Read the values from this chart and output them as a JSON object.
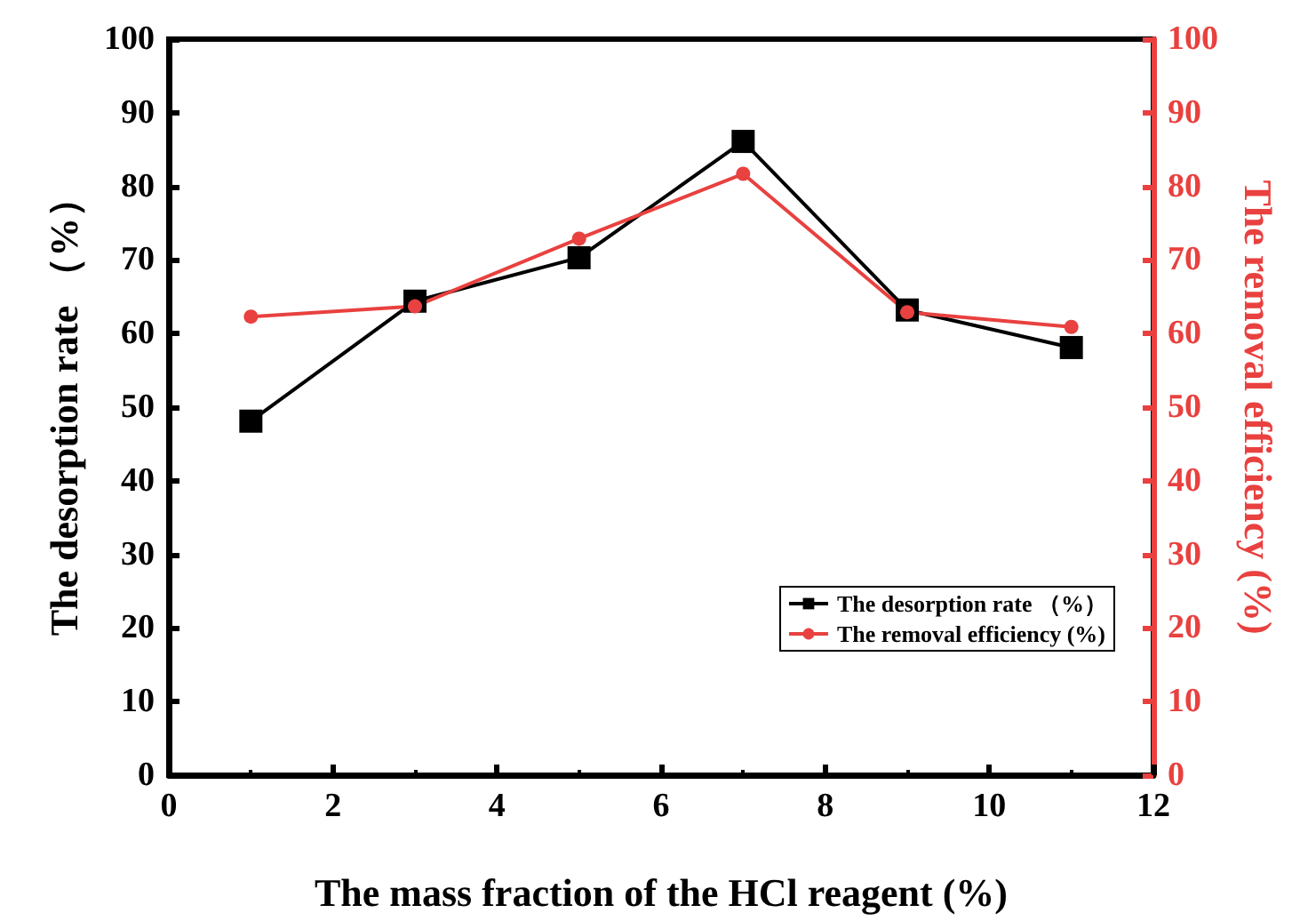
{
  "chart_data": {
    "type": "line",
    "xlabel": "The mass fraction of the HCl reagent (%)",
    "ylabel": "The desorption rate （%）",
    "y2label": "The removal efficiency (%)",
    "x": [
      1,
      3,
      5,
      7,
      9,
      11
    ],
    "series": [
      {
        "name": "The desorption rate （%）",
        "color": "#000000",
        "marker": "square",
        "values": [
          48.1,
          64.4,
          70.3,
          86.1,
          63.2,
          58.1
        ]
      },
      {
        "name": "The removal efficiency (%)",
        "color": "#e8413f",
        "marker": "circle",
        "axis": "y2",
        "values": [
          62.3,
          63.7,
          72.9,
          81.7,
          62.9,
          60.9
        ]
      }
    ],
    "xlim": [
      0,
      12
    ],
    "xticks": [
      0,
      2,
      4,
      6,
      8,
      10,
      12
    ],
    "ylim": [
      0,
      100
    ],
    "yticks": [
      0,
      10,
      20,
      30,
      40,
      50,
      60,
      70,
      80,
      90,
      100
    ],
    "y2lim": [
      0,
      100
    ],
    "y2ticks": [
      0,
      10,
      20,
      30,
      40,
      50,
      60,
      70,
      80,
      90,
      100
    ],
    "legend": "right",
    "grid": false,
    "line_style": "solid"
  }
}
